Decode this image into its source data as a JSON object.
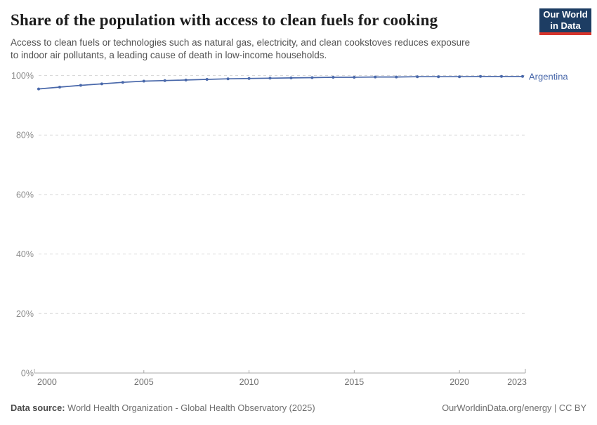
{
  "header": {
    "title": "Share of the population with access to clean fuels for cooking",
    "subtitle_line1": "Access to clean fuels or technologies such as natural gas, electricity, and clean cookstoves reduces exposure",
    "subtitle_line2": "to indoor air pollutants, a leading cause of death in low-income households.",
    "logo": {
      "line1": "Our World",
      "line2": "in Data",
      "bg_color": "#1d3d63",
      "accent_color": "#d7352c"
    }
  },
  "chart_data": {
    "type": "line",
    "title": "Share of the population with access to clean fuels for cooking",
    "x": [
      2000,
      2001,
      2002,
      2003,
      2004,
      2005,
      2006,
      2007,
      2008,
      2009,
      2010,
      2011,
      2012,
      2013,
      2014,
      2015,
      2016,
      2017,
      2018,
      2019,
      2020,
      2021,
      2022,
      2023
    ],
    "series": [
      {
        "name": "Argentina",
        "color": "#4968aa",
        "values": [
          95.5,
          96.1,
          96.7,
          97.2,
          97.7,
          98.1,
          98.3,
          98.5,
          98.7,
          98.9,
          99.0,
          99.1,
          99.2,
          99.3,
          99.4,
          99.4,
          99.5,
          99.5,
          99.6,
          99.6,
          99.6,
          99.7,
          99.7,
          99.7
        ]
      }
    ],
    "xlabel": "",
    "ylabel": "",
    "ylim": [
      0,
      100
    ],
    "yticks": [
      0,
      20,
      40,
      60,
      80,
      100
    ],
    "ytick_labels": [
      "0%",
      "20%",
      "40%",
      "60%",
      "80%",
      "100%"
    ],
    "xticks": [
      2000,
      2005,
      2010,
      2015,
      2020,
      2023
    ],
    "grid": "horizontal-dashed",
    "grid_color": "#d9d9d9",
    "axis_color": "#a9a9a9",
    "legend": "entity-label-right-of-line"
  },
  "footer": {
    "datasource_label": "Data source:",
    "datasource_text": "World Health Organization - Global Health Observatory (2025)",
    "credit": "OurWorldinData.org/energy | CC BY"
  }
}
